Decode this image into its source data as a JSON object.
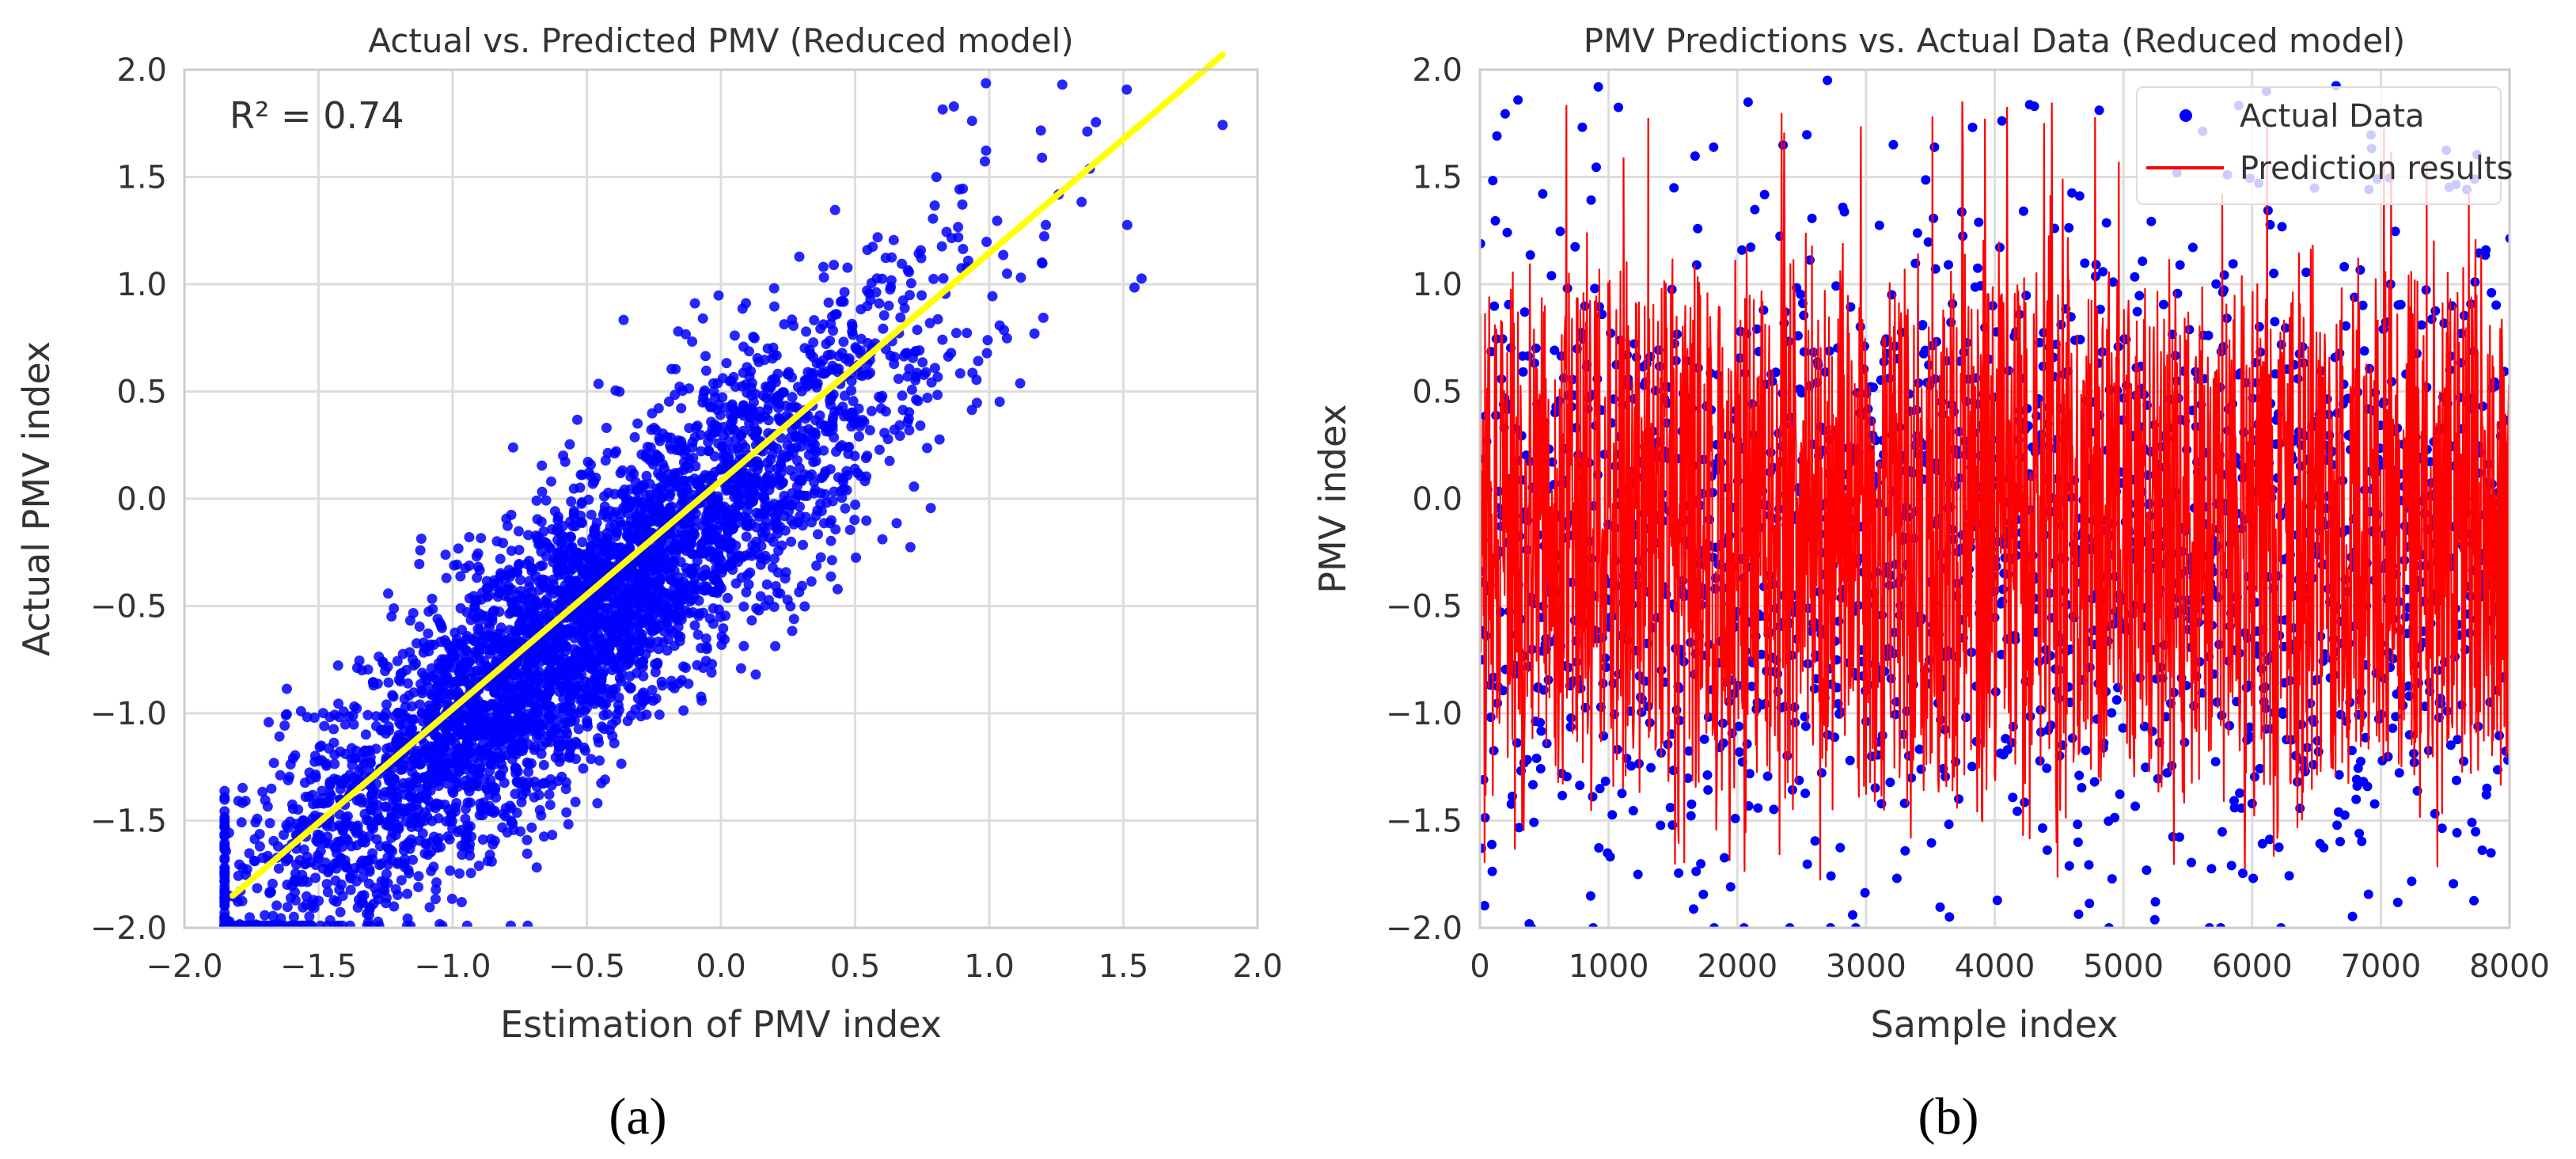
{
  "chart_data": [
    {
      "type": "scatter",
      "title": "Actual vs. Predicted PMV (Reduced model)",
      "xlabel": "Estimation of PMV index",
      "ylabel": "Actual PMV index",
      "xlim": [
        -2.0,
        2.0
      ],
      "ylim": [
        -2.0,
        2.0
      ],
      "xticks": [
        -2.0,
        -1.5,
        -1.0,
        -0.5,
        0.0,
        0.5,
        1.0,
        1.5,
        2.0
      ],
      "xtick_labels": [
        "−2.0",
        "−1.5",
        "−1.0",
        "−0.5",
        "0.0",
        "0.5",
        "1.0",
        "1.5",
        "2.0"
      ],
      "yticks": [
        -2.0,
        -1.5,
        -1.0,
        -0.5,
        0.0,
        0.5,
        1.0,
        1.5,
        2.0
      ],
      "ytick_labels": [
        "−2.0",
        "−1.5",
        "−1.0",
        "−0.5",
        "0.0",
        "0.5",
        "1.0",
        "1.5",
        "2.0"
      ],
      "grid": true,
      "annotation": "R² = 0.74",
      "point_color": "#0000ff",
      "approx_point_count": 8000,
      "x_range_of_points": [
        -1.85,
        1.87
      ],
      "fit_line": {
        "x": [
          -1.82,
          1.87
        ],
        "y": [
          -1.85,
          2.07
        ],
        "color": "#ffff00"
      },
      "caption": "(a)"
    },
    {
      "type": "line",
      "title": "PMV Predictions vs. Actual Data (Reduced model)",
      "xlabel": "Sample index",
      "ylabel": "PMV index",
      "xlim": [
        0,
        8000
      ],
      "ylim": [
        -2.0,
        2.0
      ],
      "xticks": [
        0,
        1000,
        2000,
        3000,
        4000,
        5000,
        6000,
        7000,
        8000
      ],
      "xtick_labels": [
        "0",
        "1000",
        "2000",
        "3000",
        "4000",
        "5000",
        "6000",
        "7000",
        "8000"
      ],
      "yticks": [
        -2.0,
        -1.5,
        -1.0,
        -0.5,
        0.0,
        0.5,
        1.0,
        1.5,
        2.0
      ],
      "ytick_labels": [
        "−2.0",
        "−1.5",
        "−1.0",
        "−0.5",
        "0.0",
        "0.5",
        "1.0",
        "1.5",
        "2.0"
      ],
      "grid": true,
      "series": [
        {
          "name": "Actual Data",
          "kind": "scatter",
          "color": "#0000ff",
          "range": [
            -2.0,
            2.0
          ]
        },
        {
          "name": "Prediction results",
          "kind": "line",
          "color": "#ff0000",
          "range": [
            -1.8,
            1.85
          ]
        }
      ],
      "legend_position": "top-right",
      "caption": "(b)"
    }
  ]
}
